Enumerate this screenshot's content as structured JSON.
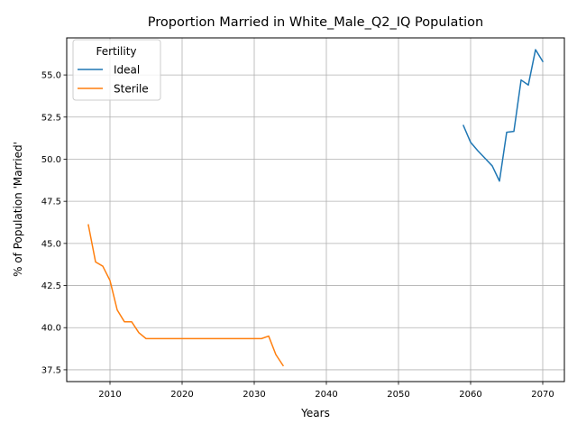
{
  "chart_data": {
    "type": "line",
    "title": "Proportion Married in White_Male_Q2_IQ Population",
    "xlabel": "Years",
    "ylabel": "% of Population 'Married'",
    "xlim": [
      2004,
      2073
    ],
    "ylim": [
      36.8,
      57.2
    ],
    "xticks": [
      2010,
      2020,
      2030,
      2040,
      2050,
      2060,
      2070
    ],
    "yticks": [
      37.5,
      40.0,
      42.5,
      45.0,
      47.5,
      50.0,
      52.5,
      55.0
    ],
    "xtick_labels": [
      "2010",
      "2020",
      "2030",
      "2040",
      "2050",
      "2060",
      "2070"
    ],
    "ytick_labels": [
      "37.5",
      "40.0",
      "42.5",
      "45.0",
      "47.5",
      "50.0",
      "52.5",
      "55.0"
    ],
    "grid": true,
    "legend": {
      "title": "Fertility",
      "placement": "upper-left"
    },
    "series": [
      {
        "name": "Ideal",
        "color": "#1f77b4",
        "x": [
          2059,
          2060,
          2061,
          2062,
          2063,
          2064,
          2065,
          2066,
          2067,
          2068,
          2069,
          2070
        ],
        "values": [
          52.0,
          51.0,
          50.5,
          50.05,
          49.6,
          48.7,
          51.6,
          51.65,
          54.7,
          54.4,
          56.5,
          55.8
        ]
      },
      {
        "name": "Sterile",
        "color": "#ff7f0e",
        "x": [
          2007,
          2008,
          2009,
          2010,
          2011,
          2012,
          2013,
          2014,
          2015,
          2016,
          2017,
          2018,
          2019,
          2020,
          2021,
          2022,
          2023,
          2024,
          2025,
          2026,
          2027,
          2028,
          2029,
          2030,
          2031,
          2032,
          2033,
          2034
        ],
        "values": [
          46.1,
          43.9,
          43.65,
          42.8,
          41.05,
          40.35,
          40.35,
          39.7,
          39.35,
          39.35,
          39.35,
          39.35,
          39.35,
          39.35,
          39.35,
          39.35,
          39.35,
          39.35,
          39.35,
          39.35,
          39.35,
          39.35,
          39.35,
          39.35,
          39.35,
          39.5,
          38.4,
          37.75
        ]
      }
    ]
  }
}
